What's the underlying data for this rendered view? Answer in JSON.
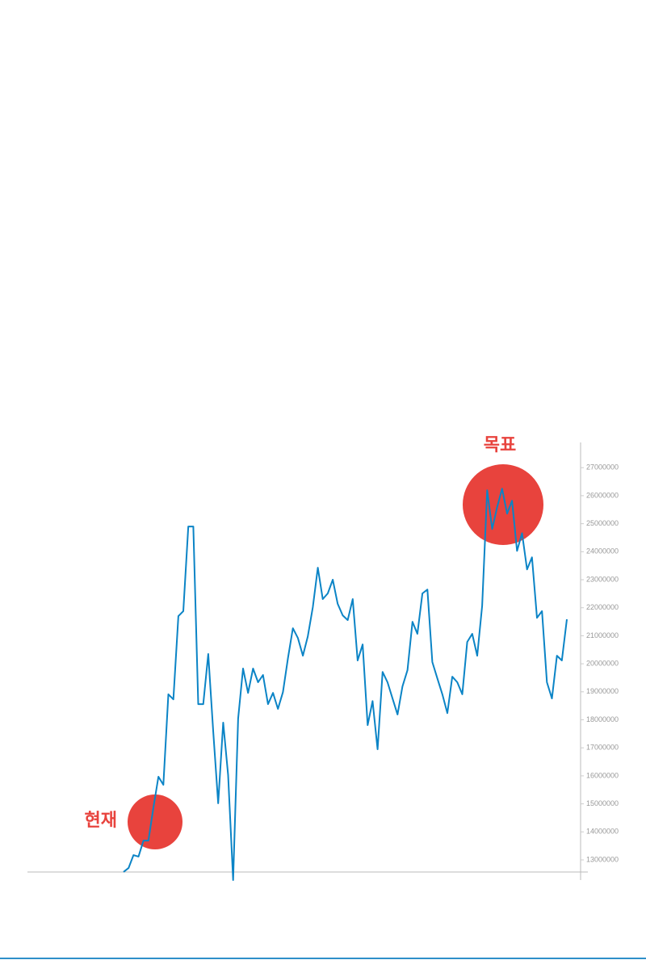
{
  "chart_data": {
    "type": "line",
    "annotations": [
      "현재",
      "목표"
    ],
    "series": [
      {
        "color": "#0b84c6",
        "values": [
          12570000,
          12710000,
          13170000,
          13120000,
          13690000,
          13690000,
          14870000,
          15970000,
          15680000,
          18910000,
          18730000,
          21700000,
          21880000,
          24900000,
          24900000,
          18560000,
          18560000,
          20350000,
          17610000,
          15020000,
          17900000,
          16030000,
          12280000,
          18040000,
          19830000,
          18960000,
          19830000,
          19340000,
          19600000,
          18560000,
          18960000,
          18390000,
          18990000,
          20200000,
          21270000,
          20920000,
          20290000,
          20980000,
          22020000,
          23430000,
          22310000,
          22510000,
          23000000,
          22140000,
          21730000,
          21560000,
          22310000,
          20120000,
          20690000,
          17810000,
          18670000,
          16950000,
          19710000,
          19340000,
          18760000,
          18190000,
          19190000,
          19770000,
          21500000,
          21070000,
          22510000,
          22650000,
          20060000,
          19480000,
          18910000,
          18240000,
          19540000,
          19340000,
          18910000,
          20780000,
          21070000,
          20290000,
          22070000,
          26190000,
          24810000,
          25590000,
          26250000,
          25360000,
          25820000,
          24030000,
          24660000,
          23370000,
          23800000,
          21640000,
          21880000,
          19340000,
          18760000,
          20290000,
          20120000,
          21590000
        ]
      }
    ],
    "ylim": [
      12280000,
      27900000
    ],
    "yticks": [
      13000000,
      14000000,
      15000000,
      16000000,
      17000000,
      18000000,
      19000000,
      20000000,
      21000000,
      22000000,
      23000000,
      24000000,
      25000000,
      26000000,
      27000000
    ],
    "annotation_color": "#e8433d"
  }
}
